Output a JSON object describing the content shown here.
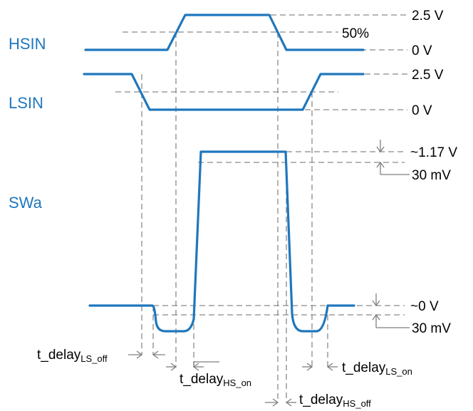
{
  "signals": {
    "hsin": "HSIN",
    "lsin": "LSIN",
    "swa": "SWa"
  },
  "levels": {
    "hsin_high": "2.5 V",
    "hsin_mid": "50%",
    "hsin_low": "0 V",
    "lsin_high": "2.5 V",
    "lsin_low": "0 V",
    "swa_high": "~1.17 V",
    "swa_high_tol": "30 mV",
    "swa_low": "~0 V",
    "swa_low_tol": "30 mV"
  },
  "delays": {
    "ls_off": {
      "base": "t_delay",
      "sub": "LS_off"
    },
    "hs_on": {
      "base": "t_delay",
      "sub": "HS_on"
    },
    "ls_on": {
      "base": "t_delay",
      "sub": "LS_on"
    },
    "hs_off": {
      "base": "t_delay",
      "sub": "HS_off"
    }
  },
  "colors": {
    "signal": "#1f77bd",
    "guide": "#8a8a8a",
    "text": "#000000"
  }
}
